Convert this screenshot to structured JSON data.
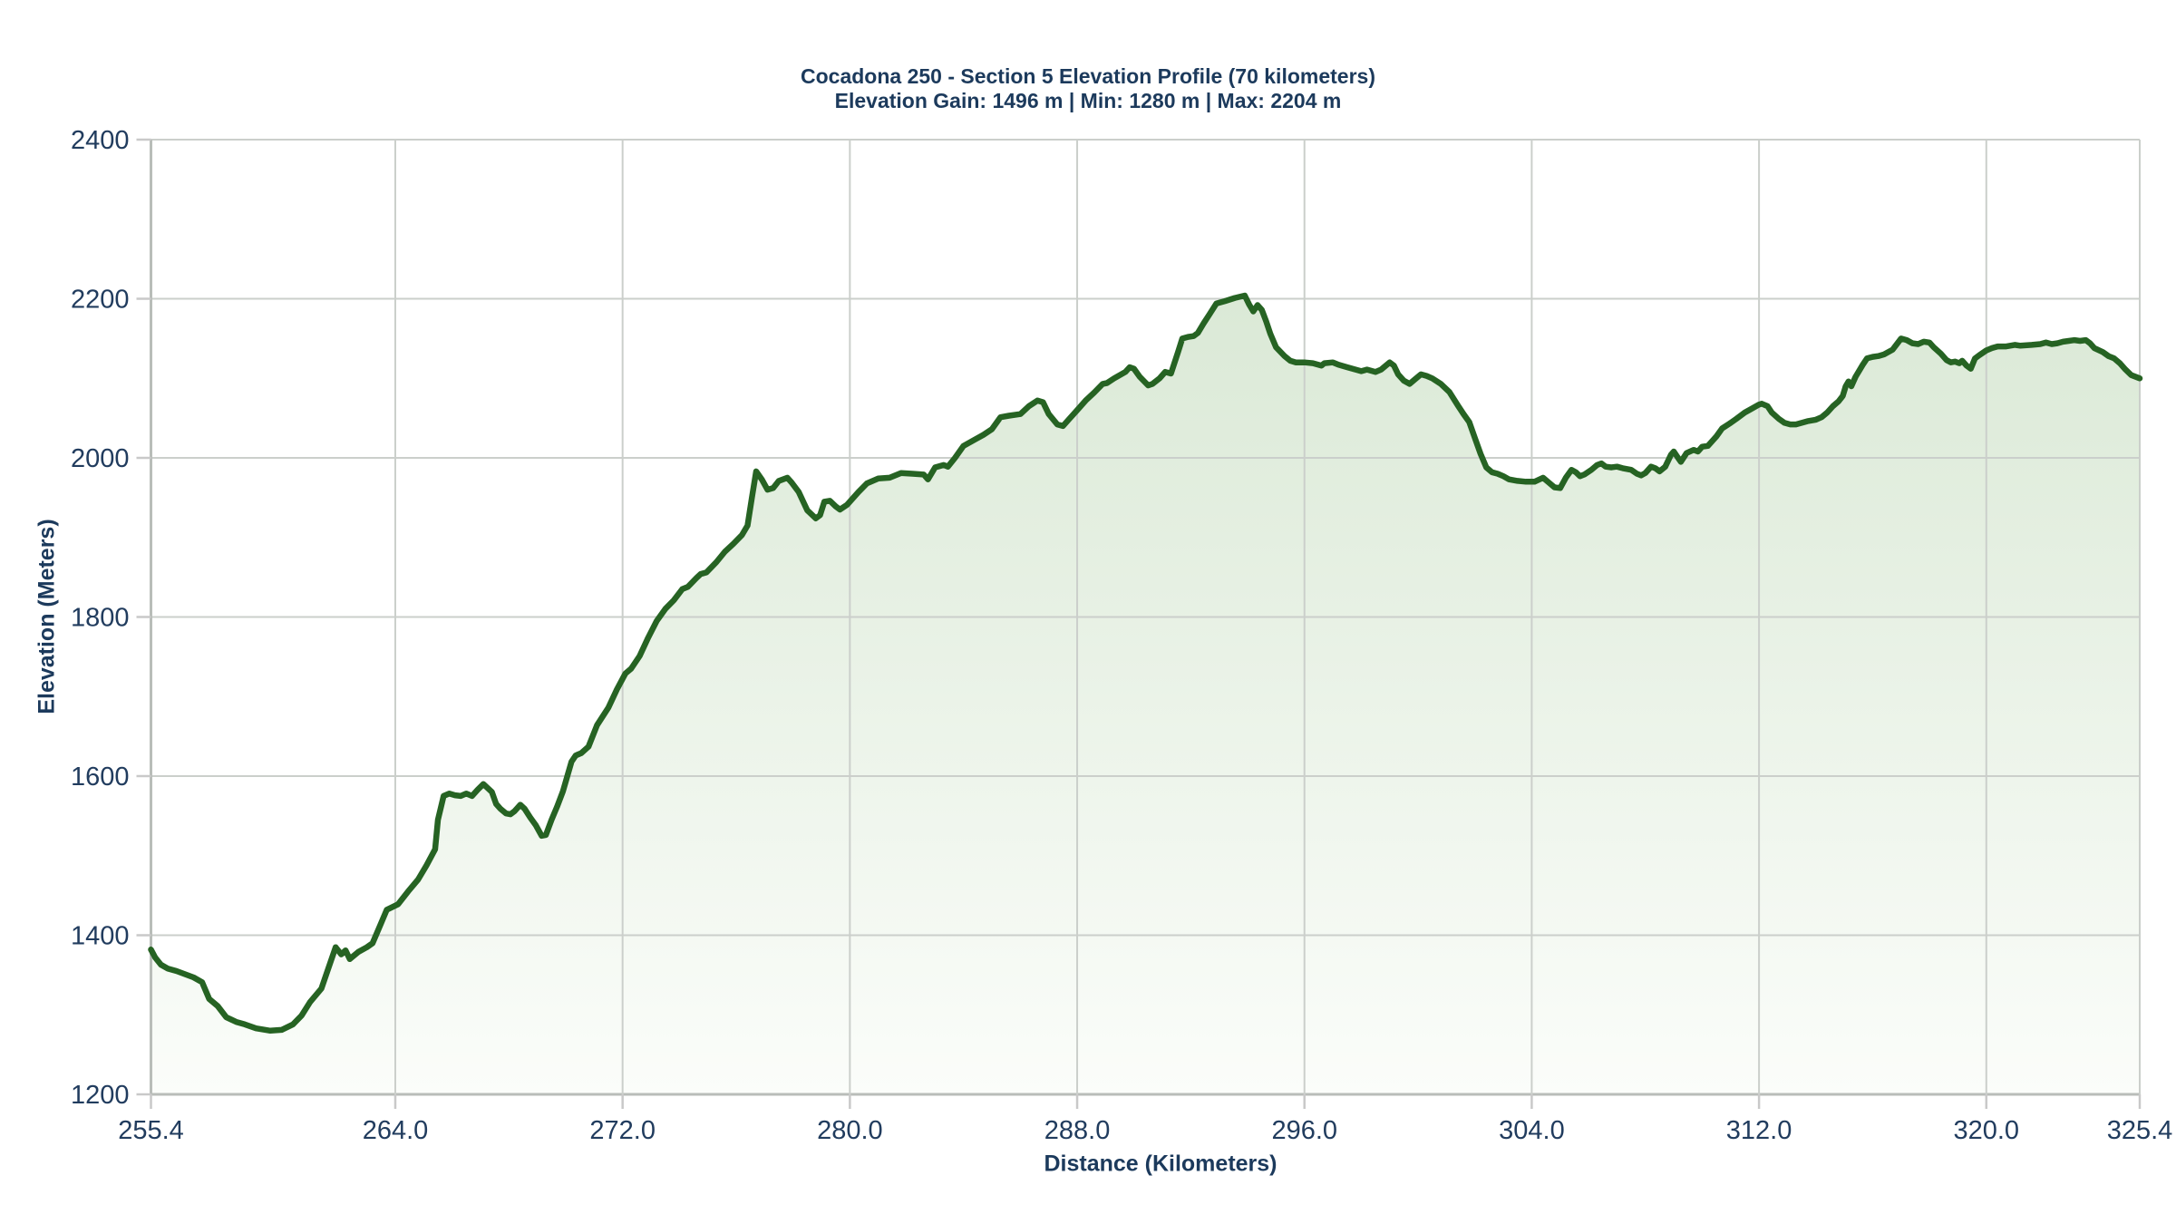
{
  "header": {
    "title": "Cocadona 250 - Section 5 Elevation Profile (70 kilometers)",
    "subtitle": "Elevation Gain: 1496 m | Min: 1280 m | Max: 2204 m"
  },
  "colors": {
    "text": "#1c3a5c",
    "line": "#266323",
    "fill_top": "#d4e5cf",
    "fill_bottom": "#fbfdfa",
    "gridline": "#cbcfcb",
    "axis_line": "#b9bdb9",
    "tick_mark": "#c9c9c9",
    "background": "#ffffff"
  },
  "chart_data": {
    "type": "area",
    "title": "Cocadona 250 - Section 5 Elevation Profile (70 kilometers)",
    "subtitle": "Elevation Gain: 1496 m | Min: 1280 m | Max: 2204 m",
    "xlabel": "Distance (Kilometers)",
    "ylabel": "Elevation (Meters)",
    "xlim": [
      255.4,
      325.4
    ],
    "ylim": [
      1200,
      2400
    ],
    "grid": true,
    "legend": false,
    "x_ticks": [
      {
        "value": 255.4,
        "label": "255.4"
      },
      {
        "value": 264.0,
        "label": "264.0"
      },
      {
        "value": 272.0,
        "label": "272.0"
      },
      {
        "value": 280.0,
        "label": "280.0"
      },
      {
        "value": 288.0,
        "label": "288.0"
      },
      {
        "value": 296.0,
        "label": "296.0"
      },
      {
        "value": 304.0,
        "label": "304.0"
      },
      {
        "value": 312.0,
        "label": "312.0"
      },
      {
        "value": 320.0,
        "label": "320.0"
      },
      {
        "value": 325.4,
        "label": "325.4"
      }
    ],
    "y_ticks": [
      {
        "value": 1200,
        "label": "1200"
      },
      {
        "value": 1400,
        "label": "1400"
      },
      {
        "value": 1600,
        "label": "1600"
      },
      {
        "value": 1800,
        "label": "1800"
      },
      {
        "value": 2000,
        "label": "2000"
      },
      {
        "value": 2200,
        "label": "2200"
      },
      {
        "value": 2400,
        "label": "2400"
      }
    ],
    "stats": {
      "elevation_gain_m": 1496,
      "min_elevation_m": 1280,
      "max_elevation_m": 2204,
      "section_length_km": 70
    },
    "series": [
      {
        "name": "Elevation profile",
        "style": "area",
        "x": [
          255.4,
          255.55,
          255.75,
          256.0,
          256.3,
          256.6,
          256.9,
          257.2,
          257.45,
          257.75,
          258.05,
          258.4,
          258.7,
          259.1,
          259.6,
          260.0,
          260.4,
          260.7,
          261.0,
          261.4,
          261.6,
          261.9,
          262.1,
          262.25,
          262.4,
          262.7,
          263.0,
          263.2,
          263.45,
          263.7,
          264.1,
          264.45,
          264.8,
          265.1,
          265.4,
          265.5,
          265.7,
          265.9,
          266.1,
          266.3,
          266.5,
          266.7,
          266.9,
          267.1,
          267.4,
          267.55,
          267.7,
          267.9,
          268.05,
          268.2,
          268.4,
          268.55,
          268.75,
          268.95,
          269.15,
          269.3,
          269.5,
          269.7,
          269.9,
          270.2,
          270.35,
          270.55,
          270.8,
          271.1,
          271.5,
          271.8,
          272.1,
          272.3,
          272.6,
          272.9,
          273.2,
          273.5,
          273.8,
          274.1,
          274.3,
          274.6,
          274.75,
          274.95,
          275.3,
          275.6,
          275.9,
          276.2,
          276.4,
          276.55,
          276.7,
          276.9,
          277.1,
          277.3,
          277.5,
          277.8,
          277.95,
          278.2,
          278.5,
          278.8,
          278.95,
          279.1,
          279.3,
          279.5,
          279.65,
          279.9,
          280.3,
          280.6,
          281.0,
          281.4,
          281.8,
          282.2,
          282.6,
          282.75,
          283.0,
          283.3,
          283.45,
          283.7,
          284.0,
          284.4,
          284.7,
          285.0,
          285.3,
          285.6,
          286.0,
          286.3,
          286.6,
          286.8,
          287.0,
          287.3,
          287.5,
          287.7,
          288.0,
          288.3,
          288.6,
          288.9,
          289.05,
          289.3,
          289.7,
          289.85,
          290.0,
          290.2,
          290.5,
          290.65,
          290.9,
          291.1,
          291.3,
          291.55,
          291.7,
          291.9,
          292.1,
          292.25,
          292.45,
          292.65,
          292.9,
          293.2,
          293.55,
          293.9,
          294.05,
          294.2,
          294.35,
          294.5,
          294.65,
          294.8,
          295.0,
          295.3,
          295.5,
          295.7,
          296.0,
          296.3,
          296.6,
          296.7,
          297.0,
          297.2,
          297.5,
          297.8,
          298.0,
          298.2,
          298.5,
          298.7,
          299.0,
          299.15,
          299.3,
          299.5,
          299.7,
          299.9,
          300.1,
          300.3,
          300.5,
          300.8,
          301.1,
          301.4,
          301.6,
          301.8,
          302.0,
          302.2,
          302.4,
          302.6,
          302.8,
          303.0,
          303.2,
          303.5,
          303.8,
          304.1,
          304.4,
          304.6,
          304.8,
          305.0,
          305.2,
          305.4,
          305.55,
          305.7,
          305.85,
          306.1,
          306.3,
          306.45,
          306.6,
          306.8,
          307.0,
          307.2,
          307.5,
          307.7,
          307.85,
          308.0,
          308.2,
          308.35,
          308.5,
          308.7,
          308.9,
          309.0,
          309.15,
          309.25,
          309.45,
          309.7,
          309.85,
          310.0,
          310.2,
          310.35,
          310.5,
          310.7,
          311.0,
          311.2,
          311.5,
          311.7,
          312.0,
          312.1,
          312.3,
          312.45,
          312.7,
          312.9,
          313.1,
          313.3,
          313.5,
          313.7,
          314.0,
          314.2,
          314.4,
          314.6,
          314.8,
          314.95,
          315.05,
          315.15,
          315.25,
          315.4,
          315.5,
          315.65,
          315.8,
          316.0,
          316.2,
          316.4,
          316.7,
          317.0,
          317.2,
          317.4,
          317.6,
          317.8,
          318.0,
          318.15,
          318.4,
          318.6,
          318.75,
          318.9,
          319.05,
          319.15,
          319.3,
          319.45,
          319.6,
          319.75,
          320.0,
          320.2,
          320.4,
          320.7,
          321.0,
          321.2,
          321.6,
          321.9,
          322.1,
          322.3,
          322.5,
          322.7,
          322.9,
          323.1,
          323.3,
          323.5,
          323.65,
          323.8,
          324.1,
          324.3,
          324.5,
          324.7,
          324.9,
          325.1,
          325.4
        ],
        "y": [
          1382,
          1372,
          1363,
          1358,
          1355,
          1351,
          1347,
          1341,
          1320,
          1311,
          1297,
          1291,
          1288,
          1283,
          1280,
          1281,
          1288,
          1299,
          1316,
          1333,
          1354,
          1385,
          1376,
          1381,
          1370,
          1379,
          1385,
          1390,
          1411,
          1432,
          1439,
          1455,
          1470,
          1488,
          1508,
          1545,
          1575,
          1578,
          1576,
          1575,
          1578,
          1575,
          1583,
          1590,
          1580,
          1565,
          1559,
          1553,
          1552,
          1556,
          1564,
          1559,
          1548,
          1538,
          1525,
          1526,
          1545,
          1562,
          1581,
          1618,
          1626,
          1629,
          1637,
          1664,
          1686,
          1709,
          1729,
          1735,
          1751,
          1774,
          1795,
          1810,
          1821,
          1835,
          1838,
          1849,
          1854,
          1856,
          1869,
          1882,
          1892,
          1903,
          1915,
          1950,
          1983,
          1973,
          1960,
          1962,
          1971,
          1975,
          1969,
          1957,
          1934,
          1924,
          1928,
          1945,
          1946,
          1939,
          1935,
          1941,
          1957,
          1968,
          1974,
          1975,
          1981,
          1980,
          1979,
          1973,
          1988,
          1991,
          1989,
          2000,
          2015,
          2023,
          2029,
          2036,
          2051,
          2053,
          2055,
          2065,
          2072,
          2070,
          2055,
          2042,
          2040,
          2048,
          2060,
          2072,
          2082,
          2093,
          2094,
          2100,
          2108,
          2114,
          2112,
          2102,
          2091,
          2093,
          2100,
          2108,
          2106,
          2133,
          2150,
          2152,
          2153,
          2157,
          2169,
          2180,
          2194,
          2197,
          2201,
          2204,
          2193,
          2184,
          2192,
          2186,
          2172,
          2156,
          2139,
          2128,
          2122,
          2120,
          2120,
          2119,
          2116,
          2119,
          2120,
          2117,
          2114,
          2111,
          2109,
          2111,
          2108,
          2111,
          2120,
          2116,
          2105,
          2097,
          2093,
          2099,
          2105,
          2103,
          2100,
          2093,
          2083,
          2066,
          2055,
          2045,
          2025,
          2005,
          1988,
          1982,
          1980,
          1977,
          1973,
          1971,
          1970,
          1970,
          1975,
          1969,
          1963,
          1962,
          1975,
          1985,
          1982,
          1977,
          1979,
          1985,
          1991,
          1993,
          1989,
          1988,
          1989,
          1987,
          1985,
          1980,
          1978,
          1981,
          1989,
          1987,
          1983,
          1989,
          2004,
          2008,
          2000,
          1995,
          2006,
          2010,
          2008,
          2014,
          2015,
          2021,
          2027,
          2037,
          2044,
          2049,
          2057,
          2061,
          2067,
          2068,
          2065,
          2057,
          2049,
          2044,
          2042,
          2042,
          2044,
          2046,
          2048,
          2051,
          2057,
          2065,
          2071,
          2078,
          2090,
          2096,
          2090,
          2102,
          2108,
          2117,
          2125,
          2127,
          2128,
          2130,
          2136,
          2150,
          2148,
          2144,
          2143,
          2146,
          2145,
          2139,
          2131,
          2123,
          2120,
          2121,
          2119,
          2122,
          2116,
          2112,
          2125,
          2129,
          2135,
          2138,
          2140,
          2140,
          2142,
          2141,
          2142,
          2143,
          2145,
          2143,
          2144,
          2146,
          2147,
          2148,
          2147,
          2148,
          2144,
          2138,
          2133,
          2128,
          2125,
          2119,
          2111,
          2104,
          2100
        ]
      }
    ]
  }
}
